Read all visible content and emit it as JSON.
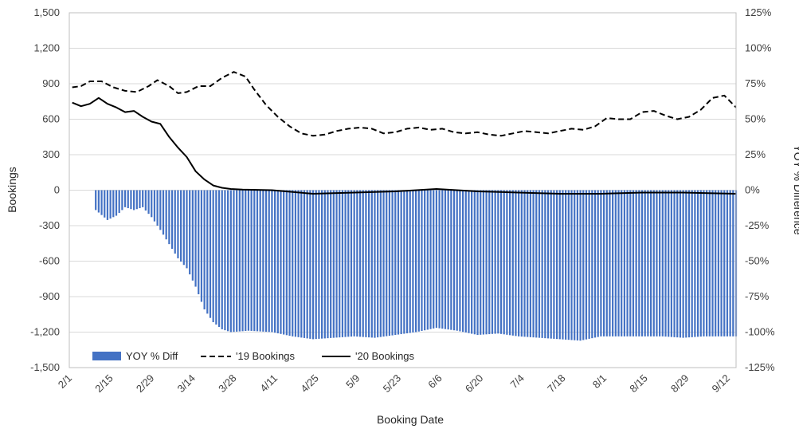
{
  "chart_data": {
    "type": "bar+line",
    "xlabel": "Booking Date",
    "ylabel_left": "Bookings",
    "ylabel_right": "YOY % Difference",
    "ylim_left": [
      -1500,
      1500
    ],
    "ylim_right": [
      -125,
      125
    ],
    "left_ticks": [
      {
        "v": 1500,
        "label": "1,500"
      },
      {
        "v": 1200,
        "label": "1,200"
      },
      {
        "v": 900,
        "label": "900"
      },
      {
        "v": 600,
        "label": "600"
      },
      {
        "v": 300,
        "label": "300"
      },
      {
        "v": 0,
        "label": "0"
      },
      {
        "v": -300,
        "label": "-300"
      },
      {
        "v": -600,
        "label": "-600"
      },
      {
        "v": -900,
        "label": "-900"
      },
      {
        "v": -1200,
        "label": "-1,200"
      },
      {
        "v": -1500,
        "label": "-1,500"
      }
    ],
    "right_ticks": [
      {
        "v": 125,
        "label": "125%"
      },
      {
        "v": 100,
        "label": "100%"
      },
      {
        "v": 75,
        "label": "75%"
      },
      {
        "v": 50,
        "label": "50%"
      },
      {
        "v": 25,
        "label": "25%"
      },
      {
        "v": 0,
        "label": "0%"
      },
      {
        "v": -25,
        "label": "-25%"
      },
      {
        "v": -50,
        "label": "-50%"
      },
      {
        "v": -75,
        "label": "-75%"
      },
      {
        "v": -100,
        "label": "-100%"
      },
      {
        "v": -125,
        "label": "-125%"
      }
    ],
    "x_ticks": [
      "2/1",
      "2/15",
      "2/29",
      "3/14",
      "3/28",
      "4/11",
      "4/25",
      "5/9",
      "5/23",
      "6/6",
      "6/20",
      "7/4",
      "7/18",
      "8/1",
      "8/15",
      "8/29",
      "9/12"
    ],
    "x_start_date": "2/1",
    "x_end_date": "9/15",
    "grid": true,
    "legend_position": "bottom-left",
    "colors": {
      "bar": "#4472C4",
      "line19": "#000000",
      "line20": "#000000",
      "grid": "#d9d9d9"
    },
    "series": [
      {
        "name": "YOY % Diff",
        "kind": "bar",
        "axis": "right",
        "points": [
          [
            "2/10",
            -14
          ],
          [
            "2/14",
            -21
          ],
          [
            "2/17",
            -18
          ],
          [
            "2/20",
            -12
          ],
          [
            "2/23",
            -14
          ],
          [
            "2/26",
            -12
          ],
          [
            "2/29",
            -19
          ],
          [
            "3/3",
            -28
          ],
          [
            "3/6",
            -38
          ],
          [
            "3/9",
            -48
          ],
          [
            "3/12",
            -55
          ],
          [
            "3/15",
            -68
          ],
          [
            "3/18",
            -84
          ],
          [
            "3/21",
            -93
          ],
          [
            "3/24",
            -98
          ],
          [
            "3/27",
            -100
          ],
          [
            "4/2",
            -99
          ],
          [
            "4/10",
            -100
          ],
          [
            "4/17",
            -103
          ],
          [
            "4/24",
            -105
          ],
          [
            "5/1",
            -104
          ],
          [
            "5/8",
            -103
          ],
          [
            "5/15",
            -104
          ],
          [
            "5/22",
            -102
          ],
          [
            "5/29",
            -100
          ],
          [
            "6/5",
            -97
          ],
          [
            "6/12",
            -99
          ],
          [
            "6/19",
            -102
          ],
          [
            "6/26",
            -101
          ],
          [
            "7/3",
            -103
          ],
          [
            "7/10",
            -104
          ],
          [
            "7/17",
            -105
          ],
          [
            "7/24",
            -106
          ],
          [
            "7/31",
            -103
          ],
          [
            "8/7",
            -103
          ],
          [
            "8/14",
            -103
          ],
          [
            "8/21",
            -103
          ],
          [
            "8/28",
            -104
          ],
          [
            "9/4",
            -103
          ],
          [
            "9/11",
            -103
          ],
          [
            "9/15",
            -103
          ]
        ]
      },
      {
        "name": "'19 Bookings",
        "kind": "line",
        "style": "dashed",
        "axis": "left",
        "points": [
          [
            "2/2",
            870
          ],
          [
            "2/5",
            880
          ],
          [
            "2/8",
            920
          ],
          [
            "2/12",
            920
          ],
          [
            "2/16",
            870
          ],
          [
            "2/20",
            840
          ],
          [
            "2/24",
            830
          ],
          [
            "2/28",
            880
          ],
          [
            "3/2",
            930
          ],
          [
            "3/6",
            880
          ],
          [
            "3/9",
            820
          ],
          [
            "3/12",
            830
          ],
          [
            "3/16",
            880
          ],
          [
            "3/20",
            880
          ],
          [
            "3/24",
            950
          ],
          [
            "3/28",
            1000
          ],
          [
            "4/1",
            960
          ],
          [
            "4/4",
            850
          ],
          [
            "4/8",
            720
          ],
          [
            "4/12",
            620
          ],
          [
            "4/16",
            540
          ],
          [
            "4/20",
            480
          ],
          [
            "4/24",
            460
          ],
          [
            "4/28",
            470
          ],
          [
            "5/2",
            500
          ],
          [
            "5/6",
            520
          ],
          [
            "5/10",
            530
          ],
          [
            "5/14",
            520
          ],
          [
            "5/18",
            480
          ],
          [
            "5/22",
            490
          ],
          [
            "5/26",
            520
          ],
          [
            "5/30",
            530
          ],
          [
            "6/3",
            510
          ],
          [
            "6/7",
            520
          ],
          [
            "6/11",
            490
          ],
          [
            "6/15",
            480
          ],
          [
            "6/19",
            490
          ],
          [
            "6/23",
            470
          ],
          [
            "6/27",
            460
          ],
          [
            "7/1",
            480
          ],
          [
            "7/5",
            500
          ],
          [
            "7/9",
            490
          ],
          [
            "7/13",
            480
          ],
          [
            "7/17",
            500
          ],
          [
            "7/21",
            520
          ],
          [
            "7/25",
            510
          ],
          [
            "7/29",
            540
          ],
          [
            "8/2",
            610
          ],
          [
            "8/6",
            600
          ],
          [
            "8/10",
            600
          ],
          [
            "8/14",
            660
          ],
          [
            "8/18",
            670
          ],
          [
            "8/22",
            630
          ],
          [
            "8/26",
            600
          ],
          [
            "8/30",
            620
          ],
          [
            "9/3",
            680
          ],
          [
            "9/7",
            780
          ],
          [
            "9/11",
            800
          ],
          [
            "9/15",
            700
          ]
        ]
      },
      {
        "name": "'20 Bookings",
        "kind": "line",
        "style": "solid",
        "axis": "left",
        "points": [
          [
            "2/2",
            740
          ],
          [
            "2/5",
            710
          ],
          [
            "2/8",
            730
          ],
          [
            "2/11",
            780
          ],
          [
            "2/14",
            730
          ],
          [
            "2/17",
            700
          ],
          [
            "2/20",
            660
          ],
          [
            "2/23",
            670
          ],
          [
            "2/26",
            620
          ],
          [
            "2/29",
            580
          ],
          [
            "3/3",
            560
          ],
          [
            "3/6",
            450
          ],
          [
            "3/9",
            360
          ],
          [
            "3/12",
            280
          ],
          [
            "3/15",
            160
          ],
          [
            "3/18",
            90
          ],
          [
            "3/21",
            40
          ],
          [
            "3/24",
            20
          ],
          [
            "3/27",
            10
          ],
          [
            "3/31",
            5
          ],
          [
            "4/10",
            0
          ],
          [
            "4/24",
            -30
          ],
          [
            "5/8",
            -20
          ],
          [
            "5/22",
            -10
          ],
          [
            "6/5",
            10
          ],
          [
            "6/19",
            -10
          ],
          [
            "7/3",
            -20
          ],
          [
            "7/17",
            -30
          ],
          [
            "7/31",
            -30
          ],
          [
            "8/14",
            -20
          ],
          [
            "8/28",
            -20
          ],
          [
            "9/15",
            -30
          ]
        ]
      }
    ]
  }
}
